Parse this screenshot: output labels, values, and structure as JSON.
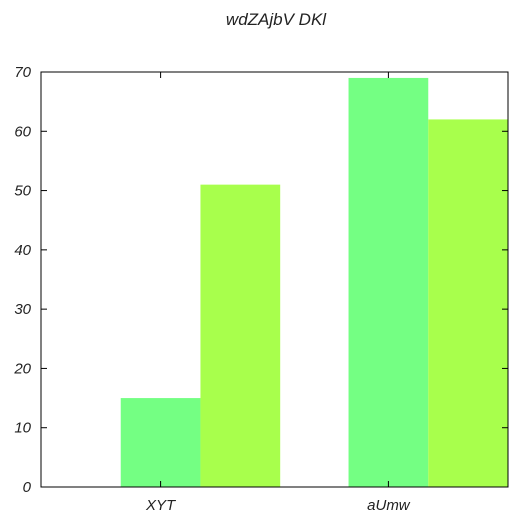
{
  "chart_data": {
    "type": "bar",
    "title": "wdZAjbV DKl",
    "xlabel": "",
    "ylabel": "",
    "categories": [
      "XYT",
      "aUmw"
    ],
    "series": [
      {
        "color": "#74ff83",
        "values": [
          15,
          69
        ]
      },
      {
        "color": "#a8ff4c",
        "values": [
          51,
          62
        ]
      }
    ],
    "ylim": [
      0,
      70
    ],
    "yticks": [
      "0",
      "10",
      "20",
      "30",
      "40",
      "50",
      "60",
      "70"
    ],
    "grid": false,
    "legend": "none"
  }
}
